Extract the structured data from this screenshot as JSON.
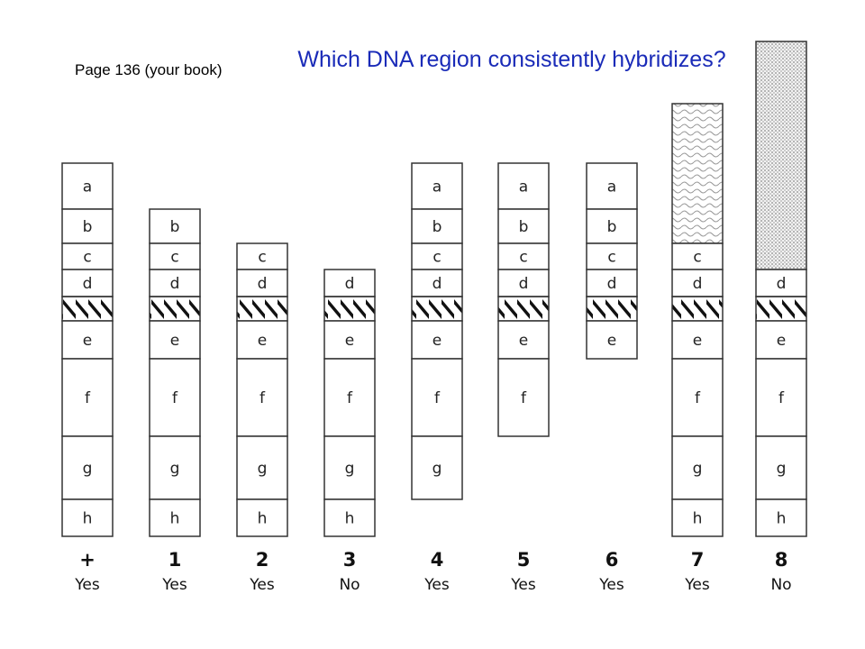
{
  "page_ref": "Page 136 (your book)",
  "title": "Which DNA region consistently hybridizes?",
  "columns": [
    {
      "label": "+",
      "result": "Yes",
      "segments": [
        "a",
        "b",
        "c",
        "d",
        "#",
        "e",
        "f",
        "g",
        "h"
      ]
    },
    {
      "label": "1",
      "result": "Yes",
      "segments": [
        "b",
        "c",
        "d",
        "#",
        "e",
        "f",
        "g",
        "h"
      ]
    },
    {
      "label": "2",
      "result": "Yes",
      "segments": [
        "c",
        "d",
        "#",
        "e",
        "f",
        "g",
        "h"
      ]
    },
    {
      "label": "3",
      "result": "No",
      "segments": [
        "d",
        "#",
        "e",
        "f",
        "g",
        "h"
      ]
    },
    {
      "label": "4",
      "result": "Yes",
      "segments": [
        "a",
        "b",
        "c",
        "d",
        "#",
        "e",
        "f",
        "g"
      ]
    },
    {
      "label": "5",
      "result": "Yes",
      "segments": [
        "a",
        "b",
        "c",
        "d",
        "#",
        "e",
        "f"
      ]
    },
    {
      "label": "6",
      "result": "Yes",
      "segments": [
        "a",
        "b",
        "c",
        "d",
        "#",
        "e"
      ]
    },
    {
      "label": "7",
      "result": "Yes",
      "segments": [
        "wavy",
        "c",
        "d",
        "#",
        "e",
        "f",
        "g",
        "h"
      ]
    },
    {
      "label": "8",
      "result": "No",
      "segments": [
        "dotted",
        "d",
        "#",
        "e",
        "f",
        "g",
        "h"
      ]
    }
  ],
  "colors": {
    "title": "#1a2bb8",
    "outline": "#333333",
    "text": "#111111"
  }
}
